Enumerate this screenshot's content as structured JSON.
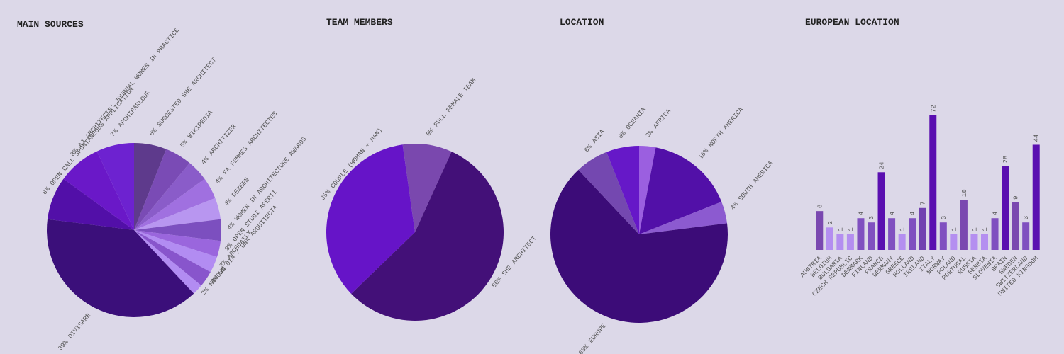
{
  "chart_data": [
    {
      "type": "pie",
      "title": "MAIN SOURCES",
      "categories": [
        "SUGGESTED SHE ARCHITECT",
        "WIKIPEDIA",
        "ARCHITIZER",
        "FA FEMMES ARCHITECTES",
        "DEZEEN",
        "WOMEN IN ARCHITECTURE AWARDS",
        "OPEN STUDI APERTI",
        "ARCHDAILY",
        "UN DIA / UNA ARQUITECTA",
        "MOMOWO",
        "DIVISARE",
        "OPEN CALL SPONTANEOUS APPLICATION",
        "AJ ARCHITECTS' JOURNAL WOMEN IN PRACTICE",
        "ARCHIPARLOUR"
      ],
      "values": [
        6,
        5,
        4,
        4,
        4,
        4,
        3,
        3,
        3,
        2,
        39,
        8,
        8,
        7
      ],
      "value_labels": [
        "6%",
        "5%",
        "4%",
        "4%",
        "4%",
        "4%",
        "3%",
        "3%",
        "3%",
        "2%",
        "39%",
        "8%",
        "8%",
        "7%"
      ],
      "colors": [
        "#5e3a8c",
        "#7a4bb5",
        "#8a5cc9",
        "#a070e0",
        "#b896f0",
        "#7c4fbf",
        "#9a66dd",
        "#b28cf2",
        "#8855cc",
        "#b28cf2",
        "#3b0f7a",
        "#520fa8",
        "#6a18c8",
        "#6d22d0"
      ]
    },
    {
      "type": "pie",
      "title": "TEAM MEMBERS",
      "categories": [
        "FULL FEMALE TEAM",
        "SHE ARCHITECT",
        "COUPLE (WOMAN + MAN)"
      ],
      "values": [
        9,
        56,
        35
      ],
      "value_labels": [
        "9%",
        "56%",
        "35%"
      ],
      "colors": [
        "#7a48ae",
        "#431078",
        "#6614c8"
      ]
    },
    {
      "type": "pie",
      "title": "LOCATION",
      "categories": [
        "AFRICA",
        "NORTH AMERICA",
        "SOUTH AMERICA",
        "EUROPE",
        "ASIA",
        "OCEANIA"
      ],
      "values": [
        3,
        16,
        4,
        65,
        6,
        6
      ],
      "value_labels": [
        "3%",
        "16%",
        "4%",
        "65%",
        "6%",
        "6%"
      ],
      "colors": [
        "#9b5fe0",
        "#5210a8",
        "#8c5ad0",
        "#3c0c78",
        "#7448b0",
        "#6618c8"
      ]
    },
    {
      "type": "bar",
      "title": "EUROPEAN LOCATION",
      "scale": "sqrt",
      "categories": [
        "AUSTRIA",
        "BELGIUM",
        "BULGARIA",
        "CZECH REPUBLIC",
        "DENMARK",
        "FINLAND",
        "FRANCE",
        "GERMANY",
        "GREECE",
        "HOLLAND",
        "IRELAND",
        "ITALY",
        "NORWAY",
        "POLAND",
        "PORTUGAL",
        "RUSSIA",
        "SERBIA",
        "SLOVENIA",
        "SPAIN",
        "SWEDEN",
        "SWITZERLAND",
        "UNITED KINGDOM"
      ],
      "values": [
        6,
        2,
        1,
        1,
        4,
        3,
        24,
        4,
        1,
        4,
        7,
        72,
        3,
        1,
        10,
        1,
        1,
        4,
        28,
        9,
        3,
        44
      ],
      "colors": [
        "#7a48b0",
        "#b48ef0",
        "#b48ef0",
        "#b48ef0",
        "#8050c0",
        "#8050c0",
        "#5a0fb0",
        "#8050c0",
        "#b48ef0",
        "#8050c0",
        "#7040b0",
        "#5a0fb0",
        "#8050c0",
        "#b48ef0",
        "#7a48b0",
        "#b48ef0",
        "#b48ef0",
        "#8050c0",
        "#5a0fb0",
        "#7a48b0",
        "#8050c0",
        "#5a0fb0"
      ]
    }
  ]
}
